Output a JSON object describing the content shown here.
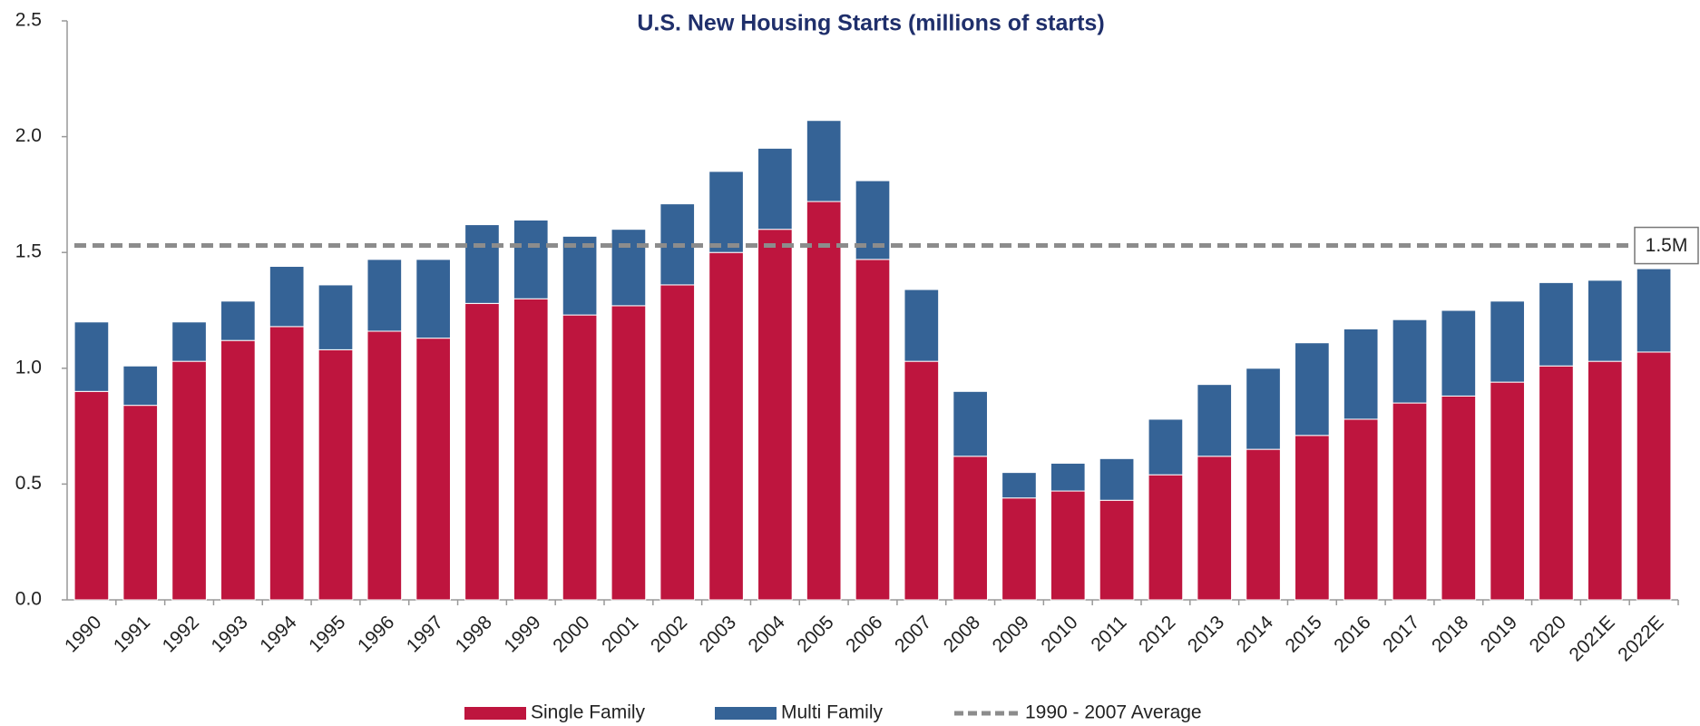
{
  "chart_data": {
    "type": "stacked_bar",
    "title": "U.S. New Housing Starts (millions of starts)",
    "categories": [
      "1990",
      "1991",
      "1992",
      "1993",
      "1994",
      "1995",
      "1996",
      "1997",
      "1998",
      "1999",
      "2000",
      "2001",
      "2002",
      "2003",
      "2004",
      "2005",
      "2006",
      "2007",
      "2008",
      "2009",
      "2010",
      "2011",
      "2012",
      "2013",
      "2014",
      "2015",
      "2016",
      "2017",
      "2018",
      "2019",
      "2020",
      "2021E",
      "2022E"
    ],
    "series": [
      {
        "name": "Single Family",
        "color": "#be153e",
        "values": [
          0.9,
          0.84,
          1.03,
          1.12,
          1.18,
          1.08,
          1.16,
          1.13,
          1.28,
          1.3,
          1.23,
          1.27,
          1.36,
          1.5,
          1.6,
          1.72,
          1.47,
          1.03,
          0.62,
          0.44,
          0.47,
          0.43,
          0.54,
          0.62,
          0.65,
          0.71,
          0.78,
          0.85,
          0.88,
          0.94,
          1.01,
          1.03,
          1.07
        ]
      },
      {
        "name": "Multi Family",
        "color": "#356396",
        "values": [
          0.3,
          0.17,
          0.17,
          0.17,
          0.26,
          0.28,
          0.31,
          0.34,
          0.34,
          0.34,
          0.34,
          0.33,
          0.35,
          0.35,
          0.35,
          0.35,
          0.34,
          0.31,
          0.28,
          0.11,
          0.12,
          0.18,
          0.24,
          0.31,
          0.35,
          0.4,
          0.39,
          0.36,
          0.37,
          0.35,
          0.36,
          0.35,
          0.36
        ]
      }
    ],
    "average_line": {
      "name": "1990 - 2007 Average",
      "value": 1.53,
      "value_label": "1.5M",
      "color": "#8c8c8c"
    },
    "ylim": [
      0,
      2.5
    ],
    "yticks": [
      {
        "value": 0,
        "label": "0.0"
      },
      0.5,
      {
        "value": 1,
        "label": "1.0"
      },
      1.5,
      {
        "value": 2,
        "label": "2.0"
      },
      2.5
    ],
    "grid": false
  }
}
